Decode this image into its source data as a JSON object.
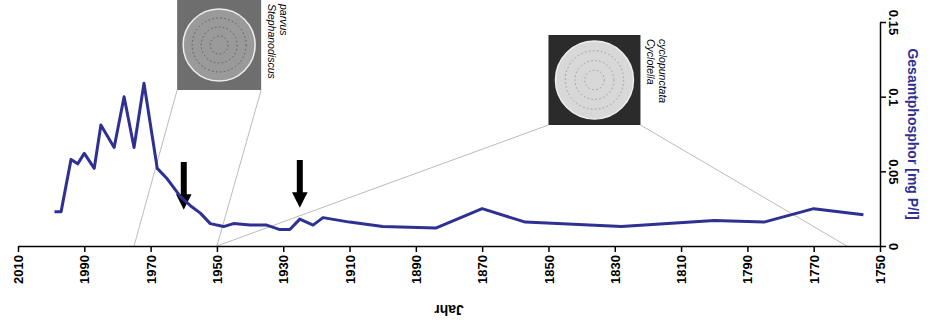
{
  "chart_data": {
    "type": "line",
    "x_label": "Jahr",
    "y_label": "Gesamtphosphor [mg P/l]",
    "x": [
      1999,
      1997,
      1994,
      1992,
      1990,
      1987,
      1985,
      1981,
      1978,
      1975,
      1972,
      1968,
      1965,
      1961,
      1958,
      1955,
      1952,
      1948,
      1945,
      1940,
      1935,
      1931,
      1928,
      1925,
      1921,
      1918,
      1910,
      1900,
      1884,
      1870,
      1857,
      1828,
      1800,
      1785,
      1770,
      1755
    ],
    "values": [
      0.023,
      0.023,
      0.058,
      0.055,
      0.062,
      0.052,
      0.081,
      0.066,
      0.1,
      0.066,
      0.109,
      0.052,
      0.045,
      0.033,
      0.027,
      0.022,
      0.015,
      0.013,
      0.015,
      0.014,
      0.014,
      0.011,
      0.011,
      0.018,
      0.014,
      0.019,
      0.016,
      0.013,
      0.012,
      0.025,
      0.016,
      0.013,
      0.017,
      0.016,
      0.025,
      0.021
    ],
    "color": "#2e3192",
    "xlim": [
      2010,
      1750
    ],
    "xticks": [
      2010,
      1990,
      1970,
      1950,
      1930,
      1910,
      1890,
      1870,
      1850,
      1830,
      1810,
      1790,
      1770,
      1750
    ],
    "ylim": [
      0,
      0.15
    ],
    "yticks": [
      0,
      0.05,
      0.1,
      0.15
    ],
    "annotations": [
      {
        "label": "Stephanodiscus parvus",
        "x_range": [
          1975,
          1950
        ]
      },
      {
        "label": "Cyclotella cyclopunctata",
        "x_range": [
          1950,
          1760
        ]
      }
    ],
    "arrows": [
      1960,
      1925
    ]
  }
}
